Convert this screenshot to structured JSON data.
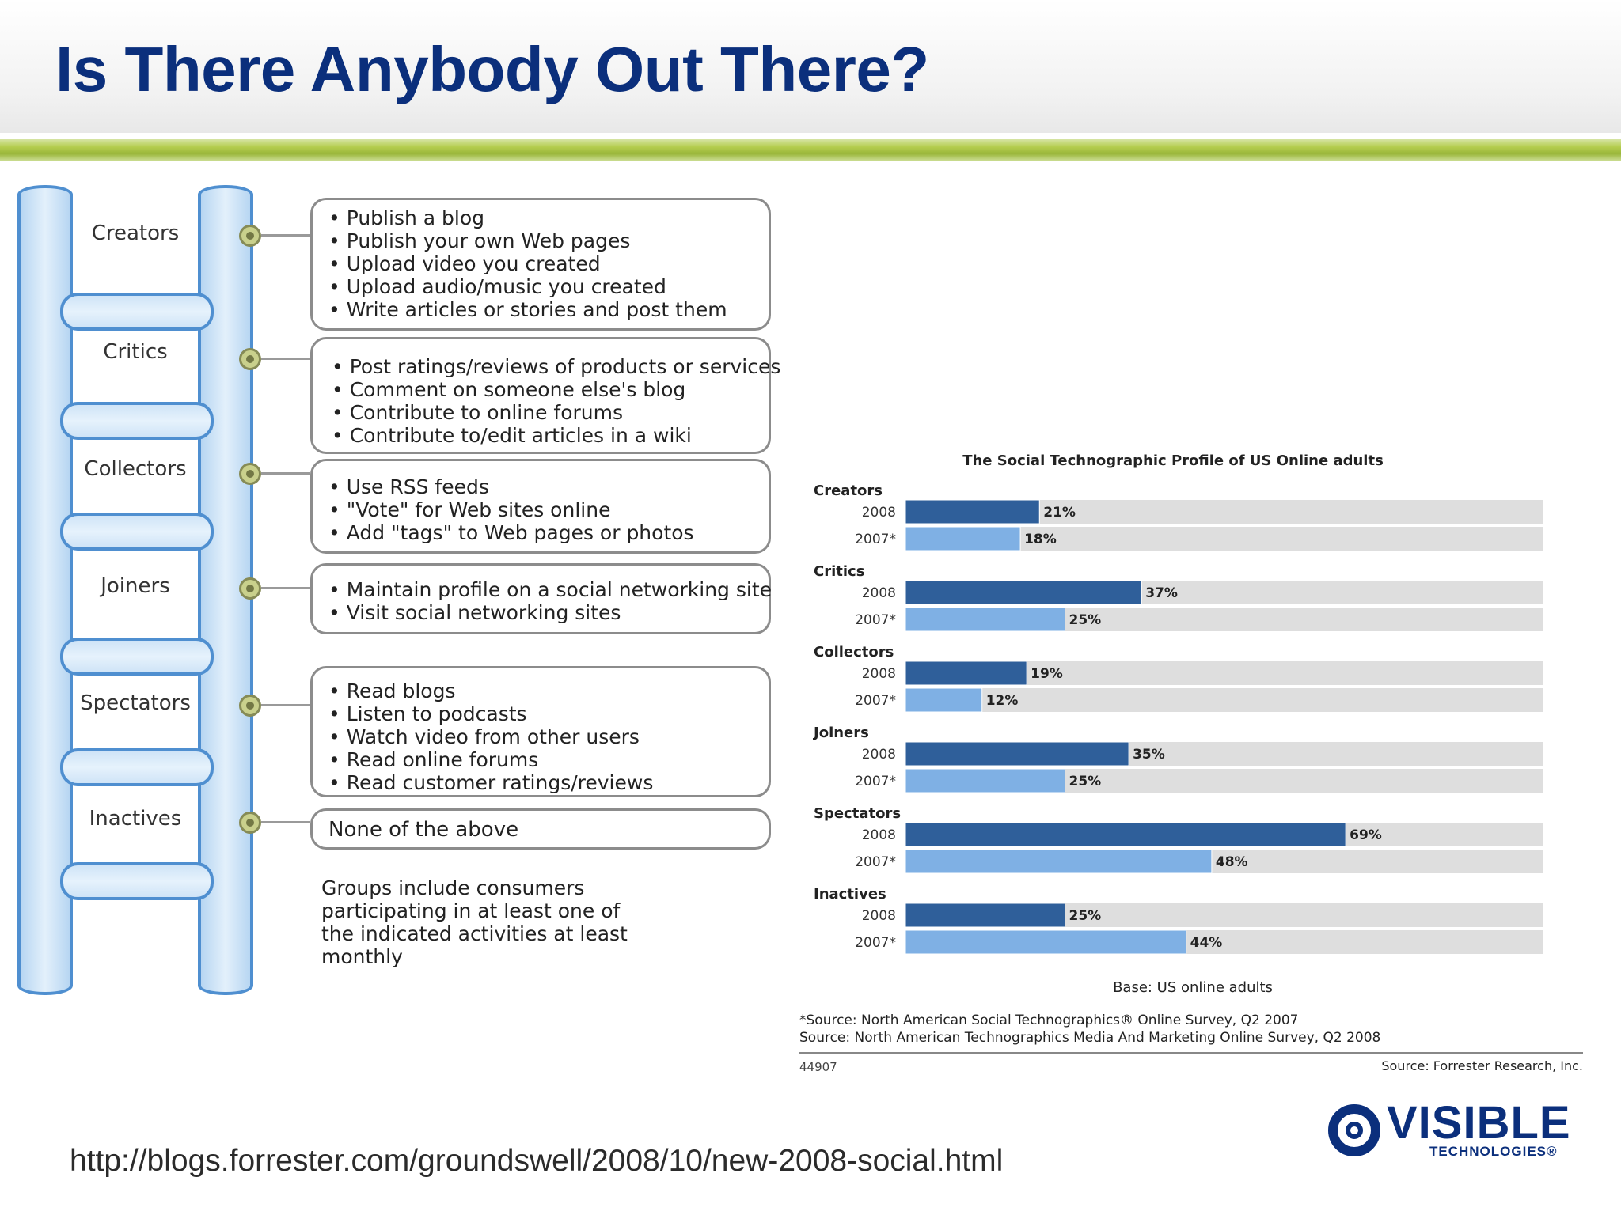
{
  "title": "Is There Anybody Out There?",
  "ladder": {
    "segments": [
      {
        "label": "Creators",
        "activities": [
          "Publish a blog",
          "Publish your own Web pages",
          "Upload video you created",
          "Upload audio/music you created",
          "Write articles or stories and post them"
        ]
      },
      {
        "label": "Critics",
        "activities": [
          "Post ratings/reviews of products or services",
          "Comment on someone else's blog",
          "Contribute to online forums",
          "Contribute to/edit articles in a wiki"
        ]
      },
      {
        "label": "Collectors",
        "activities": [
          "Use RSS feeds",
          "\"Vote\" for Web sites online",
          "Add \"tags\" to Web pages or photos"
        ]
      },
      {
        "label": "Joiners",
        "activities": [
          "Maintain profile on a social networking site",
          "Visit social networking sites"
        ]
      },
      {
        "label": "Spectators",
        "activities": [
          "Read blogs",
          "Listen to podcasts",
          "Watch video from other users",
          "Read online forums",
          "Read customer ratings/reviews"
        ]
      },
      {
        "label": "Inactives",
        "activities_text": "None of the above"
      }
    ],
    "note": "Groups include consumers participating in at least one of the indicated activities at least monthly"
  },
  "chart_data": {
    "type": "bar",
    "orientation": "horizontal",
    "title": "The Social Technographic Profile of US Online adults",
    "categories": [
      "Creators",
      "Critics",
      "Collectors",
      "Joiners",
      "Spectators",
      "Inactives"
    ],
    "series": [
      {
        "name": "2008",
        "values": [
          21,
          37,
          19,
          35,
          69,
          25
        ]
      },
      {
        "name": "2007*",
        "values": [
          18,
          25,
          12,
          25,
          48,
          44
        ]
      }
    ],
    "value_suffix": "%",
    "xlim": [
      0,
      100
    ],
    "colors": {
      "2008": "#2f5f9a",
      "2007*": "#7fb0e4",
      "track": "#dedede"
    },
    "base_note": "Base: US online adults",
    "sources": [
      "*Source: North American Social Technographics® Online Survey, Q2 2007",
      "Source: North American Technographics Media And Marketing Online Survey, Q2 2008"
    ],
    "code": "44907",
    "credit": "Source: Forrester Research, Inc."
  },
  "footer": {
    "url": "http://blogs.forrester.com/groundswell/2008/10/new-2008-social.html",
    "logo_word": "VISIBLE",
    "logo_sub": "TECHNOLOGIES®"
  }
}
